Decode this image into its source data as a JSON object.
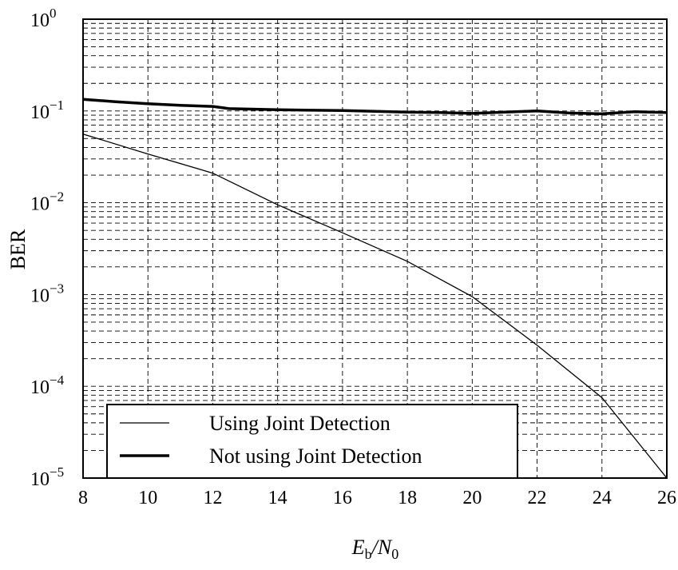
{
  "chart_data": {
    "type": "line",
    "title": "",
    "xlabel": {
      "main": "E",
      "sub1": "b",
      "slash": "/N",
      "sub2": "0"
    },
    "ylabel": "BER",
    "yscale": "log",
    "xlim": [
      8,
      26
    ],
    "ylim_exponents": [
      -5,
      0
    ],
    "x_ticks": [
      "8",
      "10",
      "12",
      "14",
      "16",
      "18",
      "20",
      "22",
      "24",
      "26"
    ],
    "y_ticks": [
      {
        "base": "10",
        "exp": "0"
      },
      {
        "base": "10",
        "exp": "−1"
      },
      {
        "base": "10",
        "exp": "−2"
      },
      {
        "base": "10",
        "exp": "−3"
      },
      {
        "base": "10",
        "exp": "−4"
      },
      {
        "base": "10",
        "exp": "−5"
      }
    ],
    "grid": true,
    "legend_position": "bottom-left",
    "series": [
      {
        "name": "Using Joint Detection",
        "style": "thin",
        "x": [
          8,
          10,
          12,
          14,
          16,
          18,
          20,
          22,
          24,
          26
        ],
        "y": [
          0.056,
          0.034,
          0.021,
          0.0095,
          0.0047,
          0.0023,
          0.00095,
          0.00028,
          7.5e-05,
          1e-05
        ]
      },
      {
        "name": "Not using Joint Detection",
        "style": "thick",
        "x": [
          8,
          8.5,
          9,
          10,
          11,
          12,
          12.5,
          14,
          16,
          17,
          18,
          19,
          20,
          21,
          22,
          23,
          24,
          25,
          26
        ],
        "y": [
          0.134,
          0.13,
          0.126,
          0.12,
          0.115,
          0.112,
          0.106,
          0.103,
          0.101,
          0.099,
          0.097,
          0.096,
          0.094,
          0.097,
          0.1,
          0.095,
          0.093,
          0.098,
          0.096
        ]
      }
    ]
  }
}
